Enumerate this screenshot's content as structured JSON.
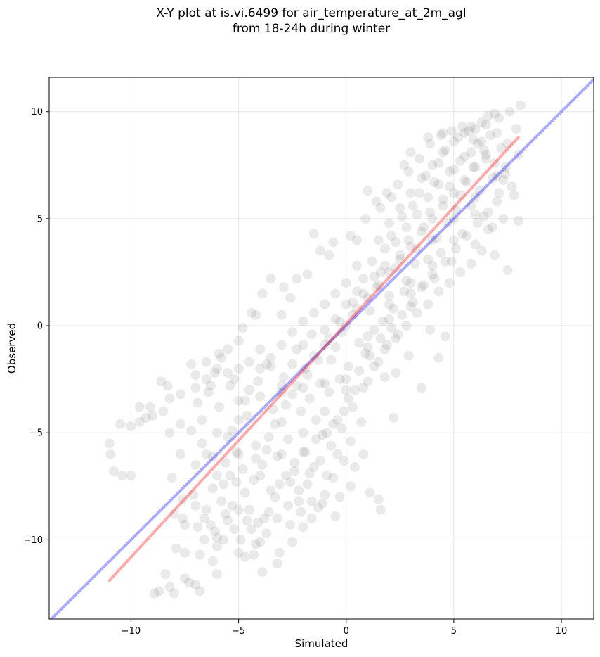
{
  "chart_data": {
    "type": "scatter",
    "title": "X-Y plot at is.vi.6499 for air_temperature_at_2m_agl",
    "subtitle": "from 18-24h during winter",
    "xlabel": "Simulated",
    "ylabel": "Observed",
    "xlim": [
      -13.8,
      11.5
    ],
    "ylim": [
      -13.7,
      11.6
    ],
    "xticks": [
      -10,
      -5,
      0,
      5,
      10
    ],
    "yticks": [
      -10,
      -5,
      0,
      5,
      10
    ],
    "xtick_labels": [
      "−10",
      "−5",
      "0",
      "5",
      "10"
    ],
    "ytick_labels": [
      "−10",
      "−5",
      "0",
      "5",
      "10"
    ],
    "grid": true,
    "point_color": "#333333",
    "point_opacity": 0.1,
    "identity_line": {
      "color": "#0000ff",
      "opacity": 0.33,
      "x": [
        -13.8,
        11.5
      ],
      "y": [
        -13.8,
        11.5
      ]
    },
    "fit_line": {
      "color": "#ff0000",
      "opacity": 0.33,
      "x": [
        -11.0,
        8.0
      ],
      "y": [
        -11.9,
        8.8
      ]
    },
    "points": [
      [
        -11.0,
        -5.5
      ],
      [
        -10.95,
        -6.0
      ],
      [
        -10.5,
        -4.6
      ],
      [
        -10.4,
        -7.0
      ],
      [
        -10.0,
        -4.7
      ],
      [
        -10.0,
        -7.0
      ],
      [
        -10.8,
        -6.8
      ],
      [
        -9.6,
        -3.8
      ],
      [
        -9.6,
        -4.5
      ],
      [
        -9.3,
        -4.3
      ],
      [
        -9.1,
        -3.8
      ],
      [
        -8.9,
        -12.5
      ],
      [
        -8.7,
        -12.4
      ],
      [
        -8.6,
        -2.6
      ],
      [
        -8.3,
        -2.8
      ],
      [
        -8.4,
        -11.6
      ],
      [
        -8.2,
        -12.2
      ],
      [
        -8.1,
        -7.1
      ],
      [
        -8.2,
        -3.4
      ],
      [
        -8.0,
        -12.5
      ],
      [
        -7.9,
        -10.4
      ],
      [
        -7.7,
        -3.2
      ],
      [
        -7.7,
        -4.6
      ],
      [
        -7.6,
        -8.1
      ],
      [
        -7.5,
        -10.6
      ],
      [
        -7.3,
        -12.0
      ],
      [
        -7.2,
        -1.8
      ],
      [
        -7.0,
        -2.3
      ],
      [
        -6.9,
        -3.6
      ],
      [
        -6.8,
        -12.4
      ],
      [
        -6.7,
        -4.4
      ],
      [
        -6.5,
        -1.7
      ],
      [
        -6.3,
        -2.8
      ],
      [
        -6.1,
        -2.2
      ],
      [
        -6.0,
        -11.6
      ],
      [
        -5.8,
        -1.5
      ],
      [
        -5.5,
        -1.1
      ],
      [
        -5.4,
        -2.8
      ],
      [
        -5.2,
        -2.5
      ],
      [
        -5.0,
        -0.7
      ],
      [
        -5.9,
        -3.8
      ],
      [
        -6.9,
        -9.4
      ],
      [
        -6.6,
        -9.0
      ],
      [
        -6.5,
        -8.6
      ],
      [
        -6.3,
        -9.3
      ],
      [
        -6.2,
        -7.6
      ],
      [
        -6.0,
        -10.3
      ],
      [
        -5.8,
        -8.2
      ],
      [
        -5.6,
        -6.4
      ],
      [
        -5.5,
        -9.1
      ],
      [
        -5.4,
        -7.0
      ],
      [
        -5.3,
        -4.9
      ],
      [
        -5.1,
        -5.9
      ],
      [
        -5.0,
        -8.6
      ],
      [
        -4.9,
        -10.0
      ],
      [
        -4.8,
        -6.7
      ],
      [
        -4.7,
        -3.5
      ],
      [
        -4.6,
        -4.2
      ],
      [
        -4.5,
        -8.6
      ],
      [
        -4.4,
        -9.5
      ],
      [
        -4.3,
        -7.2
      ],
      [
        -4.2,
        -5.6
      ],
      [
        -4.1,
        -2.6
      ],
      [
        -4.0,
        -10.1
      ],
      [
        -3.9,
        -6.5
      ],
      [
        -3.8,
        -9.0
      ],
      [
        -3.7,
        -1.8
      ],
      [
        -3.6,
        -5.2
      ],
      [
        -3.5,
        -7.7
      ],
      [
        -3.4,
        -3.9
      ],
      [
        -3.3,
        -8.0
      ],
      [
        -3.2,
        -6.1
      ],
      [
        -3.1,
        -10.6
      ],
      [
        -3.0,
        -4.5
      ],
      [
        -2.9,
        -2.4
      ],
      [
        -2.8,
        -7.0
      ],
      [
        -2.7,
        -5.3
      ],
      [
        -2.6,
        -9.3
      ],
      [
        -2.5,
        -3.2
      ],
      [
        -2.4,
        -6.4
      ],
      [
        -2.3,
        -1.1
      ],
      [
        -2.2,
        -8.2
      ],
      [
        -2.1,
        -4.0
      ],
      [
        -2.0,
        -5.9
      ],
      [
        -1.9,
        -2.0
      ],
      [
        -1.8,
        -7.4
      ],
      [
        -1.7,
        -3.4
      ],
      [
        -1.6,
        -0.4
      ],
      [
        -1.5,
        -6.6
      ],
      [
        -1.4,
        -4.4
      ],
      [
        -1.3,
        -8.5
      ],
      [
        -1.2,
        -2.7
      ],
      [
        -1.1,
        -5.1
      ],
      [
        -1.0,
        -0.9
      ],
      [
        -0.9,
        -7.0
      ],
      [
        -0.8,
        -3.1
      ],
      [
        -0.7,
        -1.6
      ],
      [
        -0.6,
        -4.6
      ],
      [
        -0.5,
        0.3
      ],
      [
        -0.4,
        -6.0
      ],
      [
        -0.3,
        -2.5
      ],
      [
        -0.2,
        -0.3
      ],
      [
        -0.1,
        -4.0
      ],
      [
        0.0,
        1.0
      ],
      [
        0.1,
        -1.9
      ],
      [
        0.2,
        -5.4
      ],
      [
        0.3,
        0.5
      ],
      [
        0.4,
        -3.0
      ],
      [
        0.5,
        1.6
      ],
      [
        0.6,
        -0.8
      ],
      [
        0.7,
        -4.5
      ],
      [
        0.8,
        2.2
      ],
      [
        0.9,
        -1.3
      ],
      [
        1.0,
        -2.6
      ],
      [
        1.1,
        0.7
      ],
      [
        1.2,
        3.0
      ],
      [
        1.3,
        -0.2
      ],
      [
        1.4,
        1.8
      ],
      [
        1.5,
        -1.7
      ],
      [
        1.6,
        2.5
      ],
      [
        1.7,
        0.2
      ],
      [
        1.8,
        3.6
      ],
      [
        1.9,
        -0.9
      ],
      [
        2.0,
        1.4
      ],
      [
        2.1,
        4.2
      ],
      [
        2.2,
        0.8
      ],
      [
        2.3,
        2.7
      ],
      [
        2.4,
        -0.4
      ],
      [
        2.5,
        3.3
      ],
      [
        2.6,
        5.1
      ],
      [
        2.7,
        1.6
      ],
      [
        2.8,
        2.1
      ],
      [
        2.9,
        4.0
      ],
      [
        3.0,
        0.9
      ],
      [
        3.1,
        5.6
      ],
      [
        3.2,
        2.9
      ],
      [
        3.3,
        3.6
      ],
      [
        3.4,
        6.2
      ],
      [
        3.5,
        1.8
      ],
      [
        3.6,
        4.6
      ],
      [
        3.7,
        7.0
      ],
      [
        3.8,
        3.1
      ],
      [
        3.9,
        5.3
      ],
      [
        4.0,
        2.4
      ],
      [
        4.1,
        6.7
      ],
      [
        4.2,
        4.1
      ],
      [
        4.3,
        7.6
      ],
      [
        4.4,
        3.4
      ],
      [
        4.5,
        5.9
      ],
      [
        4.6,
        8.2
      ],
      [
        4.7,
        4.8
      ],
      [
        4.8,
        6.5
      ],
      [
        4.9,
        3.0
      ],
      [
        5.0,
        7.3
      ],
      [
        5.1,
        5.4
      ],
      [
        5.2,
        8.8
      ],
      [
        5.3,
        6.1
      ],
      [
        5.4,
        4.3
      ],
      [
        5.5,
        7.9
      ],
      [
        5.6,
        6.7
      ],
      [
        5.7,
        9.1
      ],
      [
        5.8,
        5.6
      ],
      [
        5.9,
        7.4
      ],
      [
        6.0,
        3.8
      ],
      [
        6.1,
        8.5
      ],
      [
        6.2,
        6.3
      ],
      [
        6.3,
        9.5
      ],
      [
        6.4,
        5.1
      ],
      [
        6.5,
        7.8
      ],
      [
        6.6,
        4.5
      ],
      [
        6.7,
        8.9
      ],
      [
        6.8,
        6.9
      ],
      [
        6.9,
        9.9
      ],
      [
        7.0,
        5.8
      ],
      [
        7.2,
        8.3
      ],
      [
        7.4,
        7.1
      ],
      [
        7.5,
        2.6
      ],
      [
        7.6,
        10.0
      ],
      [
        7.8,
        6.1
      ],
      [
        8.0,
        4.9
      ],
      [
        8.1,
        10.3
      ],
      [
        7.9,
        9.2
      ],
      [
        7.3,
        6.8
      ],
      [
        6.9,
        3.3
      ],
      [
        1.5,
        -8.1
      ],
      [
        1.6,
        -8.6
      ],
      [
        2.2,
        -4.3
      ],
      [
        1.1,
        -7.8
      ],
      [
        0.8,
        -6.0
      ],
      [
        0.2,
        -7.5
      ],
      [
        -0.3,
        -8.0
      ],
      [
        -0.5,
        -8.9
      ],
      [
        -1.0,
        -7.9
      ],
      [
        -1.6,
        -9.0
      ],
      [
        -2.1,
        -8.7
      ],
      [
        -2.5,
        -10.1
      ],
      [
        -3.2,
        -11.1
      ],
      [
        -3.9,
        -11.5
      ],
      [
        -4.3,
        -10.7
      ],
      [
        -7.5,
        -11.8
      ],
      [
        -7.0,
        -12.1
      ],
      [
        -6.0,
        -9.9
      ],
      [
        -5.0,
        -10.6
      ],
      [
        -2.0,
        -9.4
      ],
      [
        3.5,
        -2.9
      ],
      [
        4.3,
        -1.5
      ],
      [
        4.6,
        -0.5
      ],
      [
        3.9,
        -0.2
      ],
      [
        2.9,
        -1.4
      ],
      [
        2.3,
        -2.2
      ],
      [
        1.8,
        -2.4
      ],
      [
        0.5,
        4.0
      ],
      [
        -0.8,
        3.3
      ],
      [
        -1.5,
        4.3
      ],
      [
        -2.3,
        2.2
      ],
      [
        -2.9,
        1.8
      ],
      [
        -3.5,
        2.2
      ],
      [
        -4.2,
        0.5
      ],
      [
        -4.8,
        -0.1
      ],
      [
        -3.0,
        0.5
      ],
      [
        1.0,
        6.3
      ],
      [
        1.6,
        5.5
      ],
      [
        2.1,
        6.0
      ],
      [
        2.7,
        7.5
      ],
      [
        3.0,
        8.1
      ],
      [
        3.8,
        8.8
      ],
      [
        4.5,
        9.0
      ],
      [
        5.8,
        9.3
      ],
      [
        6.6,
        9.8
      ],
      [
        7.1,
        9.7
      ],
      [
        -7.0,
        -6.5
      ],
      [
        -6.5,
        -6.0
      ],
      [
        -6.0,
        -7.0
      ],
      [
        -5.5,
        -5.2
      ],
      [
        -5.0,
        -4.4
      ],
      [
        -4.5,
        -3.0
      ],
      [
        -4.0,
        -2.0
      ],
      [
        -3.5,
        -1.5
      ],
      [
        -3.0,
        -2.8
      ],
      [
        -2.5,
        -1.8
      ],
      [
        -2.0,
        -0.9
      ],
      [
        -1.5,
        -1.4
      ],
      [
        -1.0,
        -0.2
      ],
      [
        -0.5,
        -1.0
      ],
      [
        0.0,
        0.0
      ],
      [
        0.5,
        0.8
      ],
      [
        1.0,
        1.3
      ],
      [
        1.5,
        1.9
      ],
      [
        2.0,
        2.5
      ],
      [
        2.5,
        3.1
      ],
      [
        3.0,
        3.7
      ],
      [
        3.5,
        4.4
      ],
      [
        4.0,
        5.0
      ],
      [
        4.5,
        5.6
      ],
      [
        5.0,
        6.2
      ],
      [
        5.5,
        6.8
      ],
      [
        6.0,
        7.4
      ],
      [
        6.5,
        8.0
      ],
      [
        -8.0,
        -8.8
      ],
      [
        -7.5,
        -9.3
      ],
      [
        -7.0,
        -8.4
      ],
      [
        -6.8,
        -10.7
      ],
      [
        -6.2,
        -11.0
      ],
      [
        -5.7,
        -10.0
      ],
      [
        -5.3,
        -8.4
      ],
      [
        -4.7,
        -7.8
      ],
      [
        -4.2,
        -6.2
      ],
      [
        -3.7,
        -5.8
      ],
      [
        -3.3,
        -4.6
      ],
      [
        -2.8,
        -3.7
      ],
      [
        -2.3,
        -2.8
      ],
      [
        -1.8,
        -2.3
      ],
      [
        -1.3,
        -1.6
      ],
      [
        -0.8,
        -0.6
      ],
      [
        -0.3,
        0.2
      ],
      [
        0.3,
        1.1
      ],
      [
        0.8,
        1.5
      ],
      [
        1.3,
        2.3
      ],
      [
        1.8,
        2.8
      ],
      [
        2.3,
        3.9
      ],
      [
        2.8,
        4.6
      ],
      [
        3.3,
        5.2
      ],
      [
        3.8,
        6.0
      ],
      [
        4.3,
        6.6
      ],
      [
        4.8,
        7.2
      ],
      [
        5.3,
        7.7
      ],
      [
        5.8,
        8.1
      ],
      [
        6.3,
        8.6
      ],
      [
        -5.0,
        -3.5
      ],
      [
        -4.0,
        -3.3
      ],
      [
        -3.0,
        -3.1
      ],
      [
        -2.0,
        -2.9
      ],
      [
        -1.0,
        -2.7
      ],
      [
        0.0,
        -2.5
      ],
      [
        1.0,
        -0.5
      ],
      [
        2.0,
        0.3
      ],
      [
        3.0,
        1.5
      ],
      [
        4.0,
        2.8
      ],
      [
        5.0,
        4.0
      ],
      [
        6.0,
        5.2
      ],
      [
        -6.0,
        -5.0
      ],
      [
        -5.0,
        -6.0
      ],
      [
        -4.0,
        -7.0
      ],
      [
        -3.0,
        -6.0
      ],
      [
        -2.0,
        -5.0
      ],
      [
        -1.0,
        -4.0
      ],
      [
        0.0,
        -3.0
      ],
      [
        1.0,
        -1.0
      ],
      [
        2.0,
        1.0
      ],
      [
        3.0,
        2.0
      ],
      [
        4.0,
        4.0
      ],
      [
        5.0,
        5.0
      ],
      [
        6.0,
        6.0
      ],
      [
        7.0,
        7.0
      ],
      [
        0.0,
        2.0
      ],
      [
        0.5,
        2.8
      ],
      [
        -0.5,
        1.5
      ],
      [
        -1.0,
        1.0
      ],
      [
        -1.5,
        0.6
      ],
      [
        -2.0,
        0.2
      ],
      [
        -2.5,
        -0.3
      ],
      [
        -3.0,
        -0.9
      ],
      [
        -3.5,
        -1.9
      ],
      [
        -4.0,
        -1.1
      ],
      [
        -4.5,
        -1.7
      ],
      [
        -5.0,
        -2.0
      ],
      [
        -5.5,
        -2.2
      ],
      [
        -6.0,
        -2.0
      ],
      [
        -6.5,
        -2.5
      ],
      [
        -7.0,
        -2.9
      ],
      [
        1.5,
        4.0
      ],
      [
        2.0,
        4.8
      ],
      [
        2.5,
        5.5
      ],
      [
        3.0,
        6.2
      ],
      [
        3.5,
        6.9
      ],
      [
        4.0,
        7.5
      ],
      [
        4.5,
        8.1
      ],
      [
        5.0,
        8.6
      ],
      [
        5.5,
        9.0
      ],
      [
        6.0,
        9.2
      ],
      [
        6.5,
        9.4
      ],
      [
        7.0,
        9.0
      ],
      [
        7.5,
        8.5
      ],
      [
        8.0,
        8.0
      ],
      [
        7.7,
        6.5
      ],
      [
        7.3,
        5.0
      ],
      [
        6.8,
        4.6
      ],
      [
        6.3,
        3.5
      ],
      [
        5.8,
        2.9
      ],
      [
        5.3,
        2.5
      ],
      [
        4.8,
        2.0
      ],
      [
        4.3,
        1.6
      ],
      [
        3.8,
        1.0
      ],
      [
        3.3,
        0.6
      ],
      [
        2.8,
        0.0
      ],
      [
        2.3,
        -0.6
      ],
      [
        1.8,
        -1.1
      ],
      [
        1.3,
        -1.9
      ],
      [
        0.8,
        -2.9
      ],
      [
        0.3,
        -3.8
      ],
      [
        -0.2,
        -4.8
      ],
      [
        -0.7,
        -5.6
      ],
      [
        -1.2,
        -6.3
      ],
      [
        -1.7,
        -6.9
      ],
      [
        -2.2,
        -7.7
      ],
      [
        -2.7,
        -8.4
      ],
      [
        -3.2,
        -9.0
      ],
      [
        -3.7,
        -9.7
      ],
      [
        -4.2,
        -10.2
      ],
      [
        -4.7,
        -10.8
      ],
      [
        -5.2,
        -9.5
      ],
      [
        -5.7,
        -7.4
      ],
      [
        -6.2,
        -6.1
      ],
      [
        -6.7,
        -5.5
      ],
      [
        -7.2,
        -4.9
      ],
      [
        -7.7,
        -6.0
      ],
      [
        -8.2,
        -5.0
      ],
      [
        -8.5,
        -4.0
      ],
      [
        -9.0,
        -4.2
      ],
      [
        -6.4,
        -3.1
      ],
      [
        -5.9,
        -1.3
      ],
      [
        -4.4,
        0.6
      ],
      [
        -3.9,
        1.5
      ],
      [
        -2.6,
        1.3
      ],
      [
        -1.8,
        2.4
      ],
      [
        -1.2,
        3.5
      ],
      [
        -0.6,
        3.9
      ],
      [
        0.2,
        4.2
      ],
      [
        0.9,
        5.0
      ],
      [
        1.4,
        5.8
      ],
      [
        1.9,
        6.2
      ],
      [
        2.4,
        6.6
      ],
      [
        2.9,
        7.2
      ],
      [
        3.4,
        7.8
      ],
      [
        3.9,
        8.5
      ],
      [
        4.4,
        8.9
      ],
      [
        4.9,
        9.1
      ],
      [
        5.4,
        9.3
      ],
      [
        5.9,
        8.7
      ],
      [
        6.4,
        8.2
      ],
      [
        6.9,
        7.6
      ],
      [
        7.4,
        7.4
      ],
      [
        -2.4,
        -6.8
      ],
      [
        -1.9,
        -5.9
      ],
      [
        -1.4,
        -5.3
      ],
      [
        -0.9,
        -5.0
      ],
      [
        -0.4,
        -4.4
      ],
      [
        0.1,
        -3.4
      ],
      [
        0.6,
        -2.1
      ],
      [
        1.1,
        -1.4
      ],
      [
        1.6,
        -0.6
      ],
      [
        2.1,
        -0.1
      ],
      [
        2.6,
        0.5
      ],
      [
        3.1,
        1.1
      ],
      [
        3.6,
        1.9
      ],
      [
        4.1,
        2.2
      ],
      [
        4.6,
        3.0
      ],
      [
        5.1,
        3.6
      ],
      [
        5.6,
        4.2
      ],
      [
        6.1,
        4.8
      ],
      [
        6.6,
        5.3
      ],
      [
        7.1,
        6.2
      ],
      [
        0.4,
        -6.6
      ],
      [
        -0.1,
        -6.3
      ],
      [
        -0.6,
        -7.1
      ],
      [
        -1.1,
        -8.3
      ],
      [
        -1.6,
        -8.2
      ],
      [
        -2.6,
        -7.3
      ],
      [
        -3.1,
        -7.4
      ],
      [
        -3.6,
        -8.7
      ],
      [
        -4.1,
        -9.2
      ],
      [
        -4.6,
        -9.1
      ],
      [
        -5.1,
        -7.3
      ],
      [
        -5.6,
        -8.8
      ],
      [
        -6.1,
        -9.6
      ],
      [
        -6.6,
        -10.0
      ],
      [
        -7.1,
        -7.9
      ],
      [
        -7.6,
        -9.0
      ]
    ]
  }
}
